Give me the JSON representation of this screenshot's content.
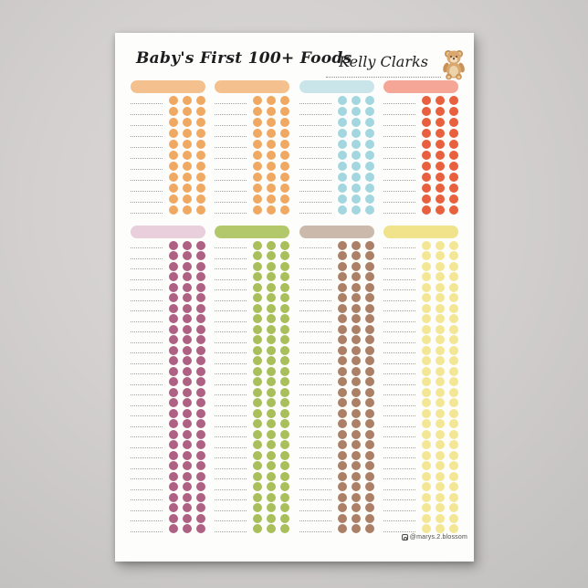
{
  "poster": {
    "title": "Baby's First 100+ Foods",
    "name": "Kelly Clarks",
    "credit_handle": "@marys.2.blossom",
    "paper_color": "#fdfdfc",
    "background_color": "#d3d0cf",
    "text_color": "#1e1d1f",
    "line_color": "#a5a29e",
    "dots_per_food": 3,
    "icons": [
      "teddy-bear-icon",
      "instagram-icon"
    ],
    "sections": [
      {
        "rows": 11,
        "columns": [
          {
            "name": "orange-1",
            "header_color": "#f4c18e",
            "dot_color": "#f0a963"
          },
          {
            "name": "orange-2",
            "header_color": "#f4c18e",
            "dot_color": "#f0a963"
          },
          {
            "name": "blue",
            "header_color": "#c9e5e9",
            "dot_color": "#a2d7e0"
          },
          {
            "name": "coral",
            "header_color": "#f5a697",
            "dot_color": "#e8603e"
          }
        ]
      },
      {
        "rows": 28,
        "columns": [
          {
            "name": "berry",
            "header_color": "#e9cedb",
            "dot_color": "#ae6182"
          },
          {
            "name": "green",
            "header_color": "#b3c76b",
            "dot_color": "#a9bf5b"
          },
          {
            "name": "brown",
            "header_color": "#cbbaab",
            "dot_color": "#ab8066"
          },
          {
            "name": "yellow",
            "header_color": "#f1e28c",
            "dot_color": "#f3e795"
          }
        ]
      }
    ]
  }
}
